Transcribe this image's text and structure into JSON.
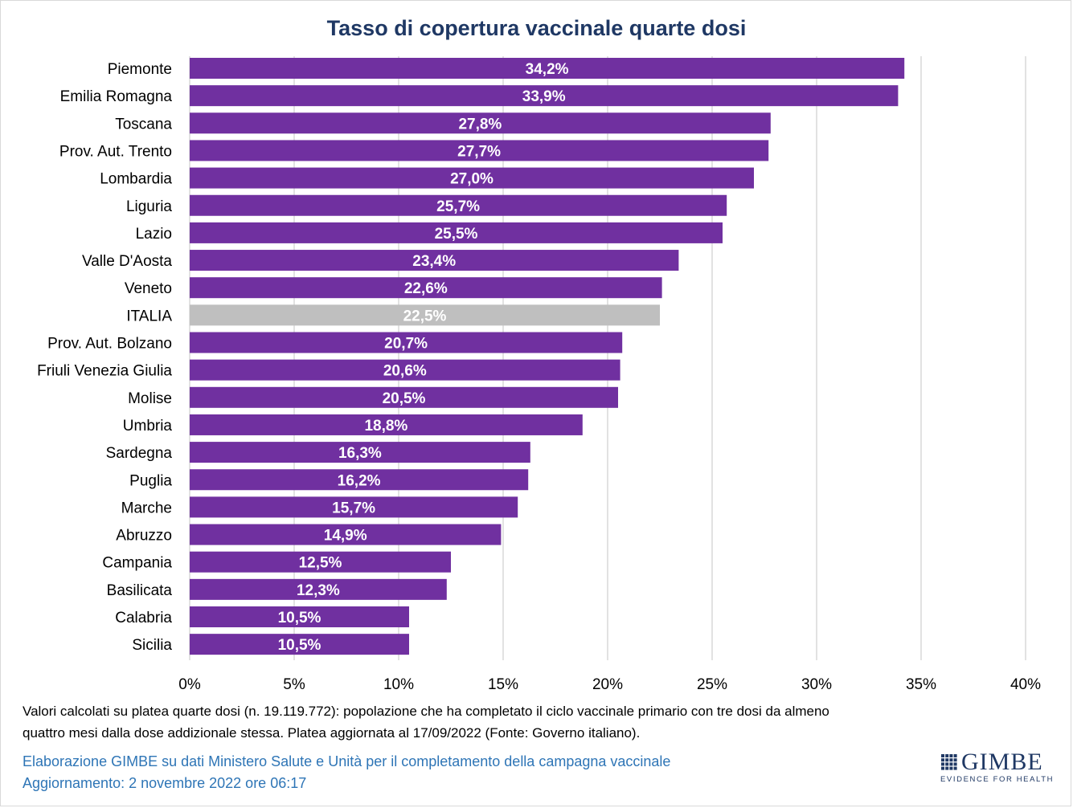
{
  "chart_data": {
    "type": "bar",
    "orientation": "horizontal",
    "title": "Tasso di copertura vaccinale quarte dosi",
    "categories": [
      "Piemonte",
      "Emilia Romagna",
      "Toscana",
      "Prov. Aut. Trento",
      "Lombardia",
      "Liguria",
      "Lazio",
      "Valle D'Aosta",
      "Veneto",
      "ITALIA",
      "Prov. Aut. Bolzano",
      "Friuli Venezia Giulia",
      "Molise",
      "Umbria",
      "Sardegna",
      "Puglia",
      "Marche",
      "Abruzzo",
      "Campania",
      "Basilicata",
      "Calabria",
      "Sicilia"
    ],
    "values": [
      34.2,
      33.9,
      27.8,
      27.7,
      27.0,
      25.7,
      25.5,
      23.4,
      22.6,
      22.5,
      20.7,
      20.6,
      20.5,
      18.8,
      16.3,
      16.2,
      15.7,
      14.9,
      12.5,
      12.3,
      10.5,
      10.5
    ],
    "data_labels": [
      "34,2%",
      "33,9%",
      "27,8%",
      "27,7%",
      "27,0%",
      "25,7%",
      "25,5%",
      "23,4%",
      "22,6%",
      "22,5%",
      "20,7%",
      "20,6%",
      "20,5%",
      "18,8%",
      "16,3%",
      "16,2%",
      "15,7%",
      "14,9%",
      "12,5%",
      "12,3%",
      "10,5%",
      "10,5%"
    ],
    "highlight_category": "ITALIA",
    "bar_color": "#7030a0",
    "highlight_color": "#bfbfbf",
    "xlim": [
      0,
      40
    ],
    "xticks": [
      0,
      5,
      10,
      15,
      20,
      25,
      30,
      35,
      40
    ],
    "xtick_labels": [
      "0%",
      "5%",
      "10%",
      "15%",
      "20%",
      "25%",
      "30%",
      "35%",
      "40%"
    ],
    "grid": true,
    "xlabel": "",
    "ylabel": ""
  },
  "footnote": {
    "line1": "Valori calcolati su platea quarte dosi (n. 19.119.772): popolazione che ha completato il ciclo vaccinale primario con tre dosi da almeno",
    "line2": "quattro mesi dalla dose addizionale stessa. Platea aggiornata al 17/09/2022 (Fonte: Governo italiano)."
  },
  "credits": {
    "source": "Elaborazione GIMBE su dati Ministero Salute e Unità per il completamento della campagna vaccinale",
    "updated": "Aggiornamento: 2 novembre 2022 ore 06:17"
  },
  "logo": {
    "name": "GIMBE",
    "tagline": "EVIDENCE FOR HEALTH",
    "color": "#1f3864"
  },
  "colors": {
    "title": "#1f3864",
    "credit_text": "#2e75b6",
    "gridline": "#d9d9d9"
  }
}
